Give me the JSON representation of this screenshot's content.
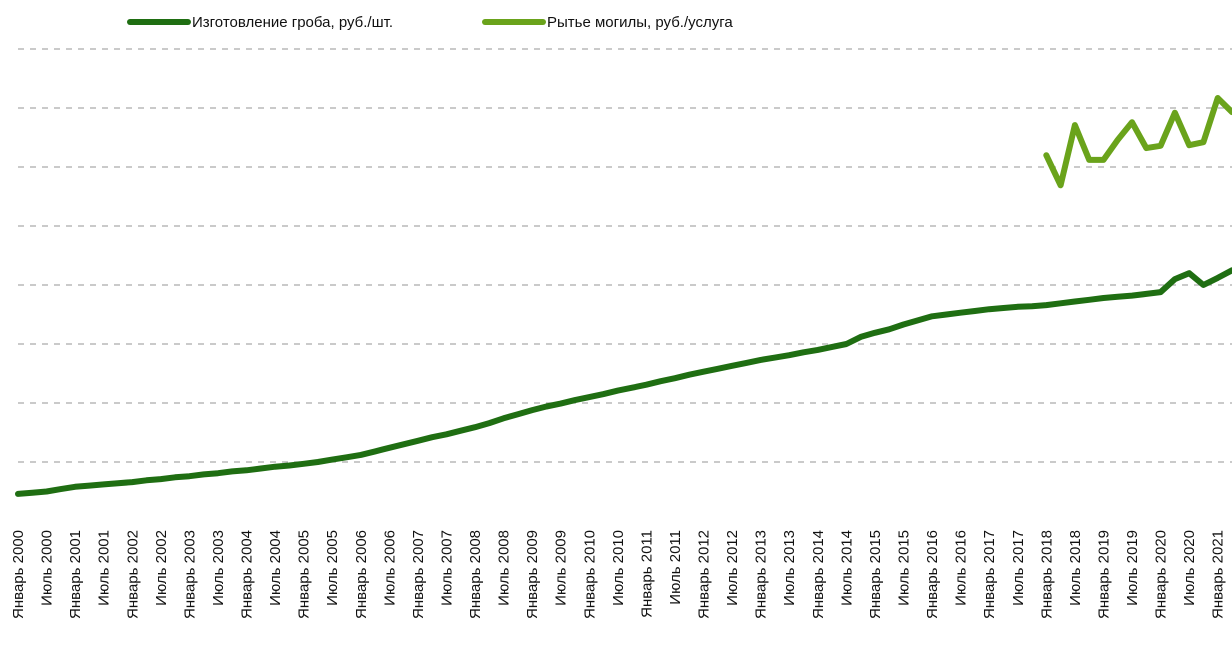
{
  "chart_data": {
    "type": "line",
    "categories": [
      "Январь 2000",
      null,
      "Июль 2000",
      null,
      "Январь 2001",
      null,
      "Июль 2001",
      null,
      "Январь 2002",
      null,
      "Июль 2002",
      null,
      "Январь 2003",
      null,
      "Июль 2003",
      null,
      "Январь 2004",
      null,
      "Июль 2004",
      null,
      "Январь 2005",
      null,
      "Июль 2005",
      null,
      "Январь 2006",
      null,
      "Июль 2006",
      null,
      "Январь 2007",
      null,
      "Июль 2007",
      null,
      "Январь 2008",
      null,
      "Июль 2008",
      null,
      "Январь 2009",
      null,
      "Июль 2009",
      null,
      "Январь 2010",
      null,
      "Июль 2010",
      null,
      "Январь 2011",
      null,
      "Июль 2011",
      null,
      "Январь 2012",
      null,
      "Июль 2012",
      null,
      "Январь 2013",
      null,
      "Июль 2013",
      null,
      "Январь 2014",
      null,
      "Июль 2014",
      null,
      "Январь 2015",
      null,
      "Июль 2015",
      null,
      "Январь 2016",
      null,
      "Июль 2016",
      null,
      "Январь 2017",
      null,
      "Июль 2017",
      null,
      "Январь 2018",
      null,
      "Июль 2018",
      null,
      "Январь 2019",
      null,
      "Июль 2019",
      null,
      "Январь 2020",
      null,
      "Июль 2020",
      null,
      "Январь 2021",
      null
    ],
    "series": [
      {
        "name": "Изготовление гроба, руб./шт.",
        "color": "#1f6e12",
        "values": [
          0.46,
          0.48,
          0.5,
          0.54,
          0.58,
          0.6,
          0.62,
          0.64,
          0.66,
          0.69,
          0.71,
          0.74,
          0.76,
          0.79,
          0.81,
          0.84,
          0.86,
          0.89,
          0.92,
          0.94,
          0.97,
          1.0,
          1.04,
          1.08,
          1.12,
          1.18,
          1.24,
          1.3,
          1.36,
          1.42,
          1.47,
          1.53,
          1.59,
          1.66,
          1.74,
          1.81,
          1.88,
          1.94,
          1.99,
          2.05,
          2.1,
          2.15,
          2.21,
          2.26,
          2.31,
          2.37,
          2.42,
          2.48,
          2.53,
          2.58,
          2.63,
          2.68,
          2.73,
          2.77,
          2.81,
          2.86,
          2.9,
          2.95,
          3.0,
          3.12,
          3.19,
          3.25,
          3.33,
          3.4,
          3.47,
          3.5,
          3.53,
          3.56,
          3.59,
          3.61,
          3.63,
          3.64,
          3.66,
          3.69,
          3.72,
          3.75,
          3.78,
          3.8,
          3.82,
          3.85,
          3.88,
          4.1,
          4.2,
          4.0,
          4.12,
          4.25
        ]
      },
      {
        "name": "Рытье могилы, руб./услуга",
        "color": "#6aa31b",
        "values": [
          null,
          null,
          null,
          null,
          null,
          null,
          null,
          null,
          null,
          null,
          null,
          null,
          null,
          null,
          null,
          null,
          null,
          null,
          null,
          null,
          null,
          null,
          null,
          null,
          null,
          null,
          null,
          null,
          null,
          null,
          null,
          null,
          null,
          null,
          null,
          null,
          null,
          null,
          null,
          null,
          null,
          null,
          null,
          null,
          null,
          null,
          null,
          null,
          null,
          null,
          null,
          null,
          null,
          null,
          null,
          null,
          null,
          null,
          null,
          null,
          null,
          null,
          null,
          null,
          null,
          null,
          null,
          null,
          null,
          null,
          null,
          null,
          6.2,
          5.69,
          6.71,
          6.12,
          6.12,
          6.46,
          6.76,
          6.32,
          6.36,
          6.92,
          6.37,
          6.42,
          7.17,
          6.93
        ]
      }
    ],
    "ylim": [
      0,
      8
    ],
    "yticks": [
      1,
      2,
      3,
      4,
      5,
      6,
      7,
      8
    ],
    "grid": true,
    "ytick_labels": false,
    "legend": "top"
  }
}
